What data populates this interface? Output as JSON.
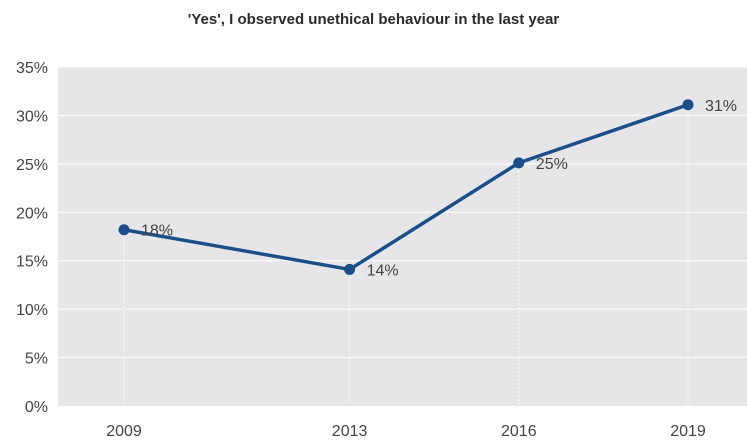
{
  "chart_data": {
    "type": "line",
    "title": "'Yes', I observed unethical behaviour in the last year",
    "categories": [
      "2009",
      "2013",
      "2016",
      "2019"
    ],
    "series": [
      {
        "values": [
          18.2,
          14.1,
          25.1,
          31.1
        ]
      }
    ],
    "data_labels": [
      "18%",
      "14%",
      "25%",
      "31%"
    ],
    "y_ticks": [
      "0%",
      "5%",
      "10%",
      "15%",
      "20%",
      "25%",
      "30%",
      "35%"
    ],
    "ylim": [
      0,
      35
    ],
    "ystep": 5,
    "x_positions_years": [
      2009,
      2013,
      2016,
      2019
    ],
    "grid": true,
    "colors": {
      "line": "#1b4f8a",
      "background": "#e6e6e9",
      "grid": "#ffffff"
    }
  }
}
